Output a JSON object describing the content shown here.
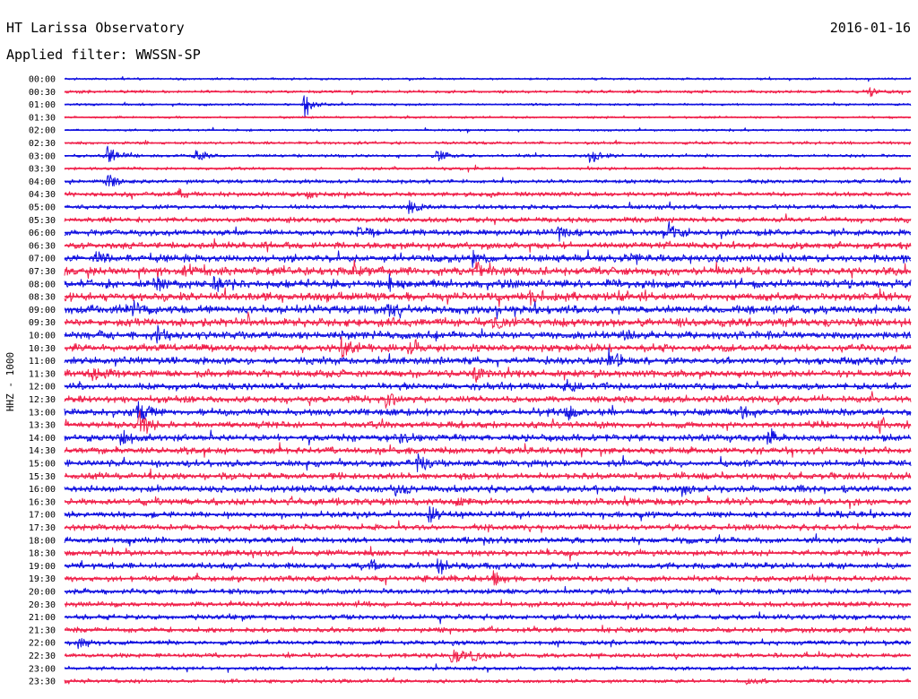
{
  "chart_data": {
    "type": "line",
    "title": "HT Larissa Observatory",
    "date": "2016-01-16",
    "subtitle": "Applied filter: WWSSN-SP",
    "ylabel": "HHZ - 1000",
    "xlabel": "",
    "grid": false,
    "legend": "none",
    "colors": [
      "#1010e0",
      "#f0204a"
    ],
    "ticks": [
      "00:00",
      "00:30",
      "01:00",
      "01:30",
      "02:00",
      "02:30",
      "03:00",
      "03:30",
      "04:00",
      "04:30",
      "05:00",
      "05:30",
      "06:00",
      "06:30",
      "07:00",
      "07:30",
      "08:00",
      "08:30",
      "09:00",
      "09:30",
      "10:00",
      "10:30",
      "11:00",
      "11:30",
      "12:00",
      "12:30",
      "13:00",
      "13:30",
      "14:00",
      "14:30",
      "15:00",
      "15:30",
      "16:00",
      "16:30",
      "17:00",
      "17:30",
      "18:00",
      "18:30",
      "19:00",
      "19:30",
      "20:00",
      "20:30",
      "21:00",
      "21:30",
      "22:00",
      "22:30",
      "23:00",
      "23:30"
    ],
    "noise_levels": [
      1.5,
      2,
      1.5,
      1.5,
      1.5,
      2,
      2,
      2,
      2.5,
      3,
      3,
      3.5,
      4,
      4.5,
      5,
      5.5,
      5.5,
      5.5,
      5.5,
      5.5,
      5,
      5,
      5,
      5,
      4.5,
      4.5,
      4.5,
      4.5,
      4.5,
      4.5,
      4.5,
      4.5,
      4.5,
      4.5,
      4,
      4,
      4,
      4,
      4,
      4,
      3.5,
      3.5,
      3.5,
      3.5,
      3,
      3,
      2.5,
      2.5
    ],
    "events": [
      {
        "trace": 1,
        "minute": 28.5,
        "amplitude": 8
      },
      {
        "trace": 2,
        "minute": 8.5,
        "amplitude": 20
      },
      {
        "trace": 6,
        "minute": 1.5,
        "amplitude": 16
      },
      {
        "trace": 6,
        "minute": 4.6,
        "amplitude": 12
      },
      {
        "trace": 6,
        "minute": 13.2,
        "amplitude": 10
      },
      {
        "trace": 6,
        "minute": 18.6,
        "amplitude": 16
      },
      {
        "trace": 8,
        "minute": 1.5,
        "amplitude": 14
      },
      {
        "trace": 9,
        "minute": 4,
        "amplitude": 12
      },
      {
        "trace": 9,
        "minute": 8.6,
        "amplitude": 8
      },
      {
        "trace": 10,
        "minute": 12.2,
        "amplitude": 10
      },
      {
        "trace": 12,
        "minute": 10.4,
        "amplitude": 12
      },
      {
        "trace": 12,
        "minute": 17.5,
        "amplitude": 10
      },
      {
        "trace": 12,
        "minute": 21.4,
        "amplitude": 14
      },
      {
        "trace": 14,
        "minute": 1.1,
        "amplitude": 12
      },
      {
        "trace": 14,
        "minute": 14.4,
        "amplitude": 10
      },
      {
        "trace": 14,
        "minute": 20,
        "amplitude": 10
      },
      {
        "trace": 15,
        "minute": 4.2,
        "amplitude": 10
      },
      {
        "trace": 15,
        "minute": 10.2,
        "amplitude": 12
      },
      {
        "trace": 15,
        "minute": 14.6,
        "amplitude": 9
      },
      {
        "trace": 16,
        "minute": 3.2,
        "amplitude": 10
      },
      {
        "trace": 16,
        "minute": 5.3,
        "amplitude": 11
      },
      {
        "trace": 16,
        "minute": 11.5,
        "amplitude": 10
      },
      {
        "trace": 17,
        "minute": 16.5,
        "amplitude": 9
      },
      {
        "trace": 18,
        "minute": 2.4,
        "amplitude": 12
      },
      {
        "trace": 18,
        "minute": 11.4,
        "amplitude": 10
      },
      {
        "trace": 19,
        "minute": 15.2,
        "amplitude": 9
      },
      {
        "trace": 20,
        "minute": 3.3,
        "amplitude": 10
      },
      {
        "trace": 20,
        "minute": 19.8,
        "amplitude": 10
      },
      {
        "trace": 21,
        "minute": 9.8,
        "amplitude": 11
      },
      {
        "trace": 21,
        "minute": 12.3,
        "amplitude": 9
      },
      {
        "trace": 22,
        "minute": 19.3,
        "amplitude": 14
      },
      {
        "trace": 23,
        "minute": 1.0,
        "amplitude": 14
      },
      {
        "trace": 23,
        "minute": 14.5,
        "amplitude": 10
      },
      {
        "trace": 24,
        "minute": 17.7,
        "amplitude": 12
      },
      {
        "trace": 25,
        "minute": 11.4,
        "amplitude": 10
      },
      {
        "trace": 26,
        "minute": 2.6,
        "amplitude": 18
      },
      {
        "trace": 26,
        "minute": 17.8,
        "amplitude": 10
      },
      {
        "trace": 26,
        "minute": 24.0,
        "amplitude": 10
      },
      {
        "trace": 27,
        "minute": 2.6,
        "amplitude": 22
      },
      {
        "trace": 27,
        "minute": 28.8,
        "amplitude": 12
      },
      {
        "trace": 28,
        "minute": 2.0,
        "amplitude": 14
      },
      {
        "trace": 28,
        "minute": 11.9,
        "amplitude": 12
      },
      {
        "trace": 28,
        "minute": 24.9,
        "amplitude": 12
      },
      {
        "trace": 30,
        "minute": 12.5,
        "amplitude": 12
      },
      {
        "trace": 32,
        "minute": 11.6,
        "amplitude": 12
      },
      {
        "trace": 32,
        "minute": 21.9,
        "amplitude": 11
      },
      {
        "trace": 33,
        "minute": 13.9,
        "amplitude": 9
      },
      {
        "trace": 34,
        "minute": 12.9,
        "amplitude": 12
      },
      {
        "trace": 34,
        "minute": 27.4,
        "amplitude": 8
      },
      {
        "trace": 38,
        "minute": 10.9,
        "amplitude": 8
      },
      {
        "trace": 38,
        "minute": 13.2,
        "amplitude": 16
      },
      {
        "trace": 39,
        "minute": 15.2,
        "amplitude": 10
      },
      {
        "trace": 44,
        "minute": 0.5,
        "amplitude": 8
      },
      {
        "trace": 45,
        "minute": 13.7,
        "amplitude": 16
      },
      {
        "trace": 45,
        "minute": 14.4,
        "amplitude": 12
      },
      {
        "trace": 47,
        "minute": 24.2,
        "amplitude": 6
      }
    ]
  }
}
